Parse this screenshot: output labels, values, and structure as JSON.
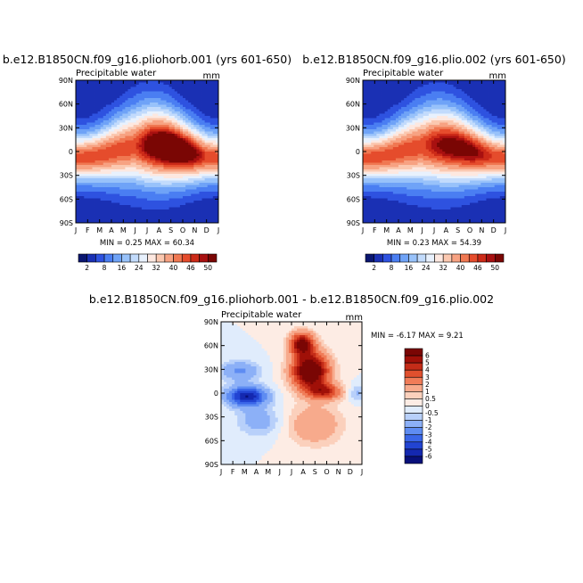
{
  "chart_data": [
    {
      "type": "heatmap",
      "panel": "top-left",
      "title": "b.e12.B1850CN.f09_g16.pliohorb.001 (yrs 601-650)",
      "subtitle": "Precipitable water",
      "units": "mm",
      "xlabel": "",
      "ylabel": "",
      "x_ticks": [
        "J",
        "F",
        "M",
        "A",
        "M",
        "J",
        "J",
        "A",
        "S",
        "O",
        "N",
        "D",
        "J"
      ],
      "y_ticks": [
        "90N",
        "60N",
        "30N",
        "0",
        "30S",
        "60S",
        "90S"
      ],
      "ylim": [
        -90,
        90
      ],
      "stats_text": "MIN =   0.25 MAX =  60.34",
      "min": 0.25,
      "max": 60.34,
      "colorbar": {
        "orientation": "horizontal",
        "levels": [
          2,
          5,
          8,
          12,
          16,
          20,
          24,
          28,
          32,
          36,
          40,
          43,
          46,
          48,
          50
        ],
        "labels": [
          "2",
          "8",
          "16",
          "24",
          "32",
          "40",
          "46",
          "50"
        ],
        "colors": [
          "#0a1670",
          "#1a30b4",
          "#2e52e0",
          "#4a7ef2",
          "#6fa3f7",
          "#98c2fa",
          "#c2dbfc",
          "#e8f1fd",
          "#fde8e0",
          "#fbc8b0",
          "#f7a282",
          "#f07852",
          "#e54c2c",
          "#cc2a18",
          "#a81010",
          "#7a0604"
        ]
      }
    },
    {
      "type": "heatmap",
      "panel": "top-right",
      "title": "b.e12.B1850CN.f09_g16.plio.002 (yrs 601-650)",
      "subtitle": "Precipitable water",
      "units": "mm",
      "xlabel": "",
      "ylabel": "",
      "x_ticks": [
        "J",
        "F",
        "M",
        "A",
        "M",
        "J",
        "J",
        "A",
        "S",
        "O",
        "N",
        "D",
        "J"
      ],
      "y_ticks": [
        "90N",
        "60N",
        "30N",
        "0",
        "30S",
        "60S",
        "90S"
      ],
      "ylim": [
        -90,
        90
      ],
      "stats_text": "MIN =   0.23 MAX =  54.39",
      "min": 0.23,
      "max": 54.39,
      "colorbar": {
        "orientation": "horizontal",
        "levels": [
          2,
          5,
          8,
          12,
          16,
          20,
          24,
          28,
          32,
          36,
          40,
          43,
          46,
          48,
          50
        ],
        "labels": [
          "2",
          "8",
          "16",
          "24",
          "32",
          "40",
          "46",
          "50"
        ],
        "colors": [
          "#0a1670",
          "#1a30b4",
          "#2e52e0",
          "#4a7ef2",
          "#6fa3f7",
          "#98c2fa",
          "#c2dbfc",
          "#e8f1fd",
          "#fde8e0",
          "#fbc8b0",
          "#f7a282",
          "#f07852",
          "#e54c2c",
          "#cc2a18",
          "#a81010",
          "#7a0604"
        ]
      }
    },
    {
      "type": "heatmap",
      "panel": "bottom",
      "title": "b.e12.B1850CN.f09_g16.pliohorb.001 - b.e12.B1850CN.f09_g16.plio.002",
      "subtitle": "Precipitable water",
      "units": "mm",
      "xlabel": "",
      "ylabel": "",
      "x_ticks": [
        "J",
        "F",
        "M",
        "A",
        "M",
        "J",
        "J",
        "A",
        "S",
        "O",
        "N",
        "D",
        "J"
      ],
      "y_ticks": [
        "90N",
        "60N",
        "30N",
        "0",
        "30S",
        "60S",
        "90S"
      ],
      "ylim": [
        -90,
        90
      ],
      "stats_text": "MIN =  -6.17 MAX =   9.21",
      "min": -6.17,
      "max": 9.21,
      "colorbar": {
        "orientation": "vertical",
        "levels": [
          -6,
          -5,
          -4,
          -3,
          -2,
          -1,
          -0.5,
          0,
          0.5,
          1,
          2,
          3,
          4,
          5,
          6
        ],
        "labels": [
          "6",
          "5",
          "4",
          "3",
          "2",
          "1",
          "0.5",
          "0",
          "-0.5",
          "-1",
          "-2",
          "-3",
          "-4",
          "-5",
          "-6"
        ],
        "colors": [
          "#08107a",
          "#1428b0",
          "#2244d2",
          "#3a66e8",
          "#5e8cf2",
          "#8cb0f7",
          "#b8d0fa",
          "#e0ecfc",
          "#fdece4",
          "#fbd0bc",
          "#f7aa8c",
          "#f07c58",
          "#e0502e",
          "#c42c18",
          "#a01008",
          "#7a0604"
        ]
      }
    }
  ]
}
